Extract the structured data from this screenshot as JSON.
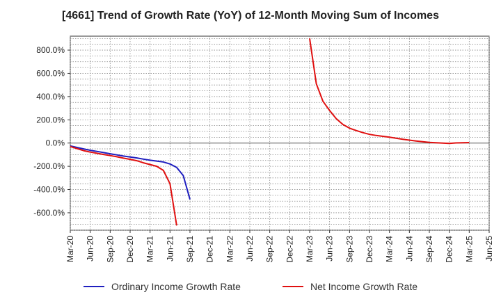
{
  "chart_data": {
    "type": "line",
    "title": "[4661]  Trend of Growth Rate (YoY) of 12-Month Moving Sum of Incomes",
    "xlabel": "",
    "ylabel": "",
    "x_ticks": [
      "Mar-20",
      "Jun-20",
      "Sep-20",
      "Dec-20",
      "Mar-21",
      "Jun-21",
      "Sep-21",
      "Dec-21",
      "Mar-22",
      "Jun-22",
      "Sep-22",
      "Dec-22",
      "Mar-23",
      "Jun-23",
      "Sep-23",
      "Dec-23",
      "Mar-24",
      "Jun-24",
      "Sep-24",
      "Dec-24",
      "Mar-25",
      "Jun-25"
    ],
    "y_ticks": [
      "800.0%",
      "600.0%",
      "400.0%",
      "200.0%",
      "0.0%",
      "-200.0%",
      "-400.0%",
      "-600.0%"
    ],
    "y_tick_values": [
      800,
      600,
      400,
      200,
      0,
      -200,
      -400,
      -600
    ],
    "ylim": [
      -750,
      920
    ],
    "grid": true,
    "legend_position": "bottom",
    "series": [
      {
        "name": "Ordinary Income Growth Rate",
        "color": "#1f1fbf",
        "x": [
          "Mar-20",
          "Apr-20",
          "May-20",
          "Jun-20",
          "Jul-20",
          "Aug-20",
          "Sep-20",
          "Oct-20",
          "Nov-20",
          "Dec-20",
          "Jan-21",
          "Feb-21",
          "Mar-21",
          "Apr-21",
          "May-21",
          "Jun-21",
          "Jul-21",
          "Aug-21",
          "Sep-21"
        ],
        "values": [
          -25,
          -38,
          -50,
          -62,
          -72,
          -82,
          -92,
          -102,
          -112,
          -120,
          -128,
          -138,
          -148,
          -155,
          -163,
          -180,
          -210,
          -280,
          -485
        ]
      },
      {
        "name": "Net Income Growth Rate",
        "color": "#e01010",
        "x": [
          "Mar-20",
          "Apr-20",
          "May-20",
          "Jun-20",
          "Jul-20",
          "Aug-20",
          "Sep-20",
          "Oct-20",
          "Nov-20",
          "Dec-20",
          "Jan-21",
          "Feb-21",
          "Mar-21",
          "Apr-21",
          "May-21",
          "Jun-21",
          "Jul-21",
          "Mar-23",
          "Apr-23",
          "May-23",
          "Jun-23",
          "Jul-23",
          "Aug-23",
          "Sep-23",
          "Oct-23",
          "Nov-23",
          "Dec-23",
          "Jan-24",
          "Feb-24",
          "Mar-24",
          "Apr-24",
          "May-24",
          "Jun-24",
          "Jul-24",
          "Aug-24",
          "Sep-24",
          "Oct-24",
          "Nov-24",
          "Dec-24",
          "Jan-25",
          "Feb-25",
          "Mar-25"
        ],
        "values": [
          -30,
          -48,
          -65,
          -78,
          -88,
          -98,
          -108,
          -118,
          -130,
          -140,
          -152,
          -170,
          -185,
          -200,
          -235,
          -350,
          -710,
          900,
          510,
          360,
          280,
          210,
          160,
          128,
          108,
          90,
          75,
          65,
          58,
          50,
          42,
          33,
          25,
          18,
          12,
          6,
          3,
          0,
          -3,
          1,
          3,
          4
        ],
        "breaks_after": [
          "Jul-21"
        ]
      }
    ]
  }
}
